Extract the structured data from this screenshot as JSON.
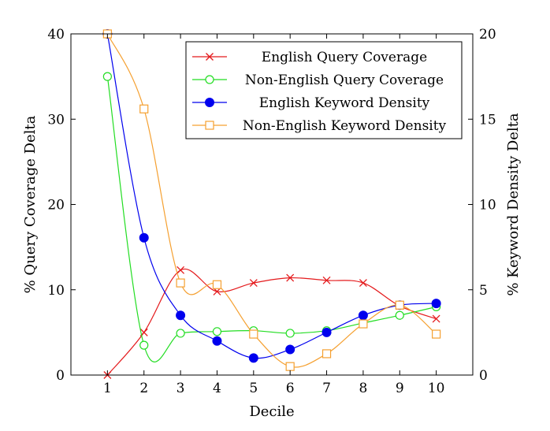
{
  "chart_data": {
    "type": "line",
    "xlabel": "Decile",
    "ylabel_left": "% Query Coverage Delta",
    "ylabel_right": "% Keyword Density Delta",
    "x": [
      1,
      2,
      3,
      4,
      5,
      6,
      7,
      8,
      9,
      10
    ],
    "xlim": [
      0,
      11
    ],
    "ylim_left": [
      0,
      40
    ],
    "ylim_right": [
      0,
      20
    ],
    "yticks_left": [
      0,
      10,
      20,
      30,
      40
    ],
    "yticks_right": [
      0,
      5,
      10,
      15,
      20
    ],
    "legend_position": "top-right",
    "grid": false,
    "series": [
      {
        "name": "English Query Coverage",
        "axis": "left",
        "color": "#e41a1c",
        "marker": "x",
        "values": [
          0,
          5,
          12.3,
          9.8,
          10.8,
          11.4,
          11.1,
          10.8,
          8.1,
          6.6
        ]
      },
      {
        "name": "Non-English Query Coverage",
        "axis": "left",
        "color": "#22dd22",
        "marker": "circle-open",
        "values": [
          35,
          3.5,
          4.9,
          5.1,
          5.2,
          4.9,
          5.2,
          6.1,
          7.0,
          8.0
        ]
      },
      {
        "name": "English Keyword Density",
        "axis": "right",
        "color": "#0000ee",
        "marker": "circle-filled",
        "values": [
          20,
          8.05,
          3.5,
          2.0,
          1.0,
          1.5,
          2.5,
          3.5,
          4.1,
          4.2
        ]
      },
      {
        "name": "Non-English Keyword Density",
        "axis": "right",
        "color": "#f5a030",
        "marker": "square-open",
        "values": [
          20,
          15.6,
          5.4,
          5.3,
          2.4,
          0.5,
          1.25,
          3.0,
          4.1,
          2.4
        ]
      }
    ]
  }
}
